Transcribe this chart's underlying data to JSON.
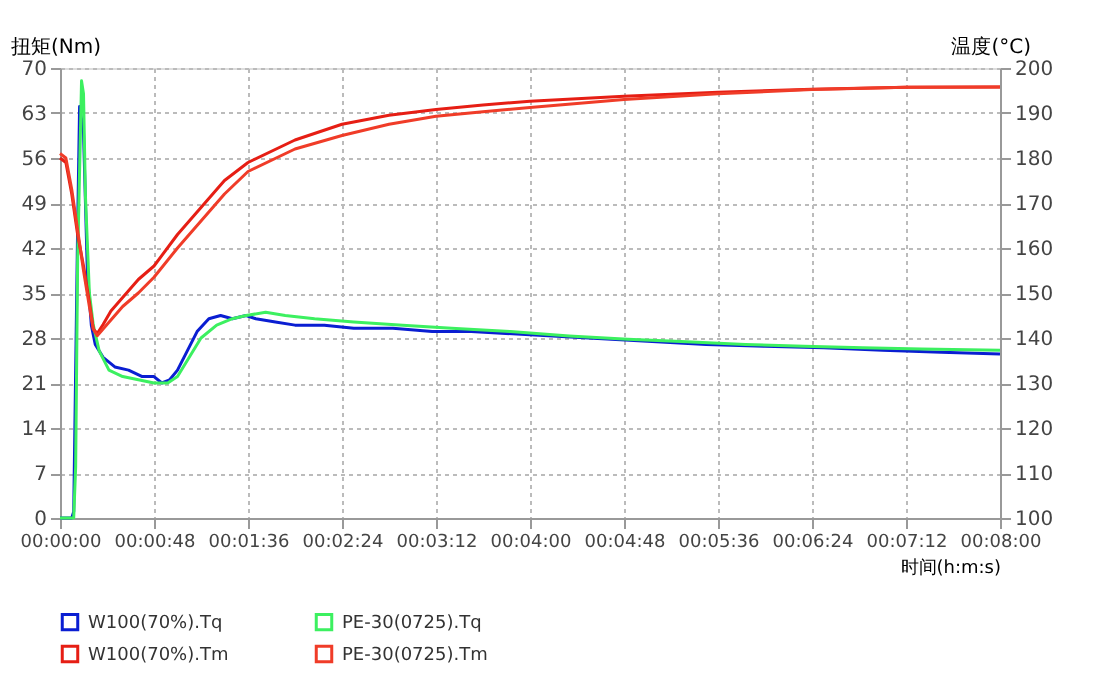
{
  "chart_data": {
    "type": "line",
    "xlabel": "时间(h:m:s)",
    "ylabel": "扭矩(Nm)",
    "y2label": "温度(°C)",
    "xlim": [
      0,
      480
    ],
    "xticks": [
      {
        "value": 0,
        "label": "00:00:00"
      },
      {
        "value": 48,
        "label": "00:00:48"
      },
      {
        "value": 96,
        "label": "00:01:36"
      },
      {
        "value": 144,
        "label": "00:02:24"
      },
      {
        "value": 192,
        "label": "00:03:12"
      },
      {
        "value": 240,
        "label": "00:04:00"
      },
      {
        "value": 288,
        "label": "00:04:48"
      },
      {
        "value": 336,
        "label": "00:05:36"
      },
      {
        "value": 384,
        "label": "00:06:24"
      },
      {
        "value": 432,
        "label": "00:07:12"
      },
      {
        "value": 480,
        "label": "00:08:00"
      }
    ],
    "ylim": [
      0,
      70
    ],
    "yticks": [
      0,
      7,
      14,
      21,
      28,
      35,
      42,
      49,
      56,
      63,
      70
    ],
    "y2lim": [
      100,
      200
    ],
    "y2ticks": [
      100,
      110,
      120,
      130,
      140,
      150,
      160,
      170,
      180,
      190,
      200
    ],
    "grid": true,
    "legend": "bottom",
    "marker": "none",
    "line_style": "solid",
    "series": [
      {
        "name": "W100(70%).Tq",
        "color": "#0a1ed2",
        "x": [
          0,
          6,
          7,
          8,
          9,
          10,
          12,
          14,
          16,
          18,
          22,
          28,
          35,
          42,
          48,
          52,
          56,
          60,
          65,
          70,
          76,
          82,
          88,
          95,
          100,
          110,
          120,
          135,
          150,
          170,
          190,
          210,
          240,
          270,
          300,
          330,
          360,
          390,
          420,
          450,
          480
        ],
        "values": [
          0,
          0,
          1,
          23,
          45,
          64,
          60,
          38,
          30,
          27,
          25,
          23.5,
          23,
          22,
          22,
          21,
          21.5,
          23,
          26,
          29,
          31,
          31.5,
          31,
          31.5,
          31,
          30.5,
          30,
          30,
          29.5,
          29.5,
          29,
          29,
          28.5,
          28,
          27.5,
          27,
          26.7,
          26.5,
          26.1,
          25.8,
          25.5
        ]
      },
      {
        "name": "PE-30(0725).Tq",
        "color": "#3cf060",
        "x": [
          0,
          7,
          8,
          9,
          11,
          12,
          13,
          15,
          17,
          20,
          25,
          32,
          40,
          48,
          55,
          60,
          66,
          72,
          80,
          88,
          95,
          105,
          115,
          130,
          150,
          175,
          200,
          230,
          260,
          290,
          320,
          350,
          380,
          410,
          440,
          480
        ],
        "values": [
          0,
          0,
          8,
          40,
          68,
          66,
          50,
          35,
          30,
          26,
          23,
          22,
          21.5,
          21,
          21,
          22,
          25,
          28,
          30,
          31,
          31.5,
          32,
          31.5,
          31,
          30.5,
          30,
          29.5,
          29,
          28.3,
          27.8,
          27.4,
          27,
          26.7,
          26.5,
          26.3,
          26.1
        ]
      },
      {
        "name": "W100(70%).Tm",
        "color": "#e61e14",
        "axis": "y2",
        "x": [
          0,
          3,
          6,
          9,
          12,
          15,
          17,
          19,
          22,
          26,
          32,
          40,
          48,
          60,
          72,
          84,
          96,
          120,
          144,
          168,
          192,
          216,
          240,
          288,
          336,
          384,
          432,
          480
        ],
        "values": [
          180,
          179,
          172,
          163,
          156,
          148,
          142,
          141,
          143,
          146,
          149,
          153,
          156,
          163,
          169,
          175,
          179,
          184,
          187.5,
          189.5,
          190.8,
          191.8,
          192.6,
          193.7,
          194.6,
          195.3,
          195.7,
          195.8
        ]
      },
      {
        "name": "PE-30(0725).Tm",
        "color": "#f03c28",
        "axis": "y2",
        "x": [
          0,
          3,
          6,
          9,
          12,
          15,
          17,
          19,
          22,
          26,
          32,
          40,
          48,
          60,
          72,
          84,
          96,
          120,
          144,
          168,
          192,
          216,
          240,
          288,
          336,
          384,
          432,
          480
        ],
        "values": [
          181,
          180,
          173,
          164,
          155,
          147,
          142,
          140.5,
          142,
          144,
          147,
          150,
          153.5,
          160,
          166,
          172,
          177,
          182,
          185,
          187.5,
          189.3,
          190.3,
          191.2,
          193,
          194.3,
          195.2,
          195.7,
          195.8
        ]
      }
    ]
  }
}
